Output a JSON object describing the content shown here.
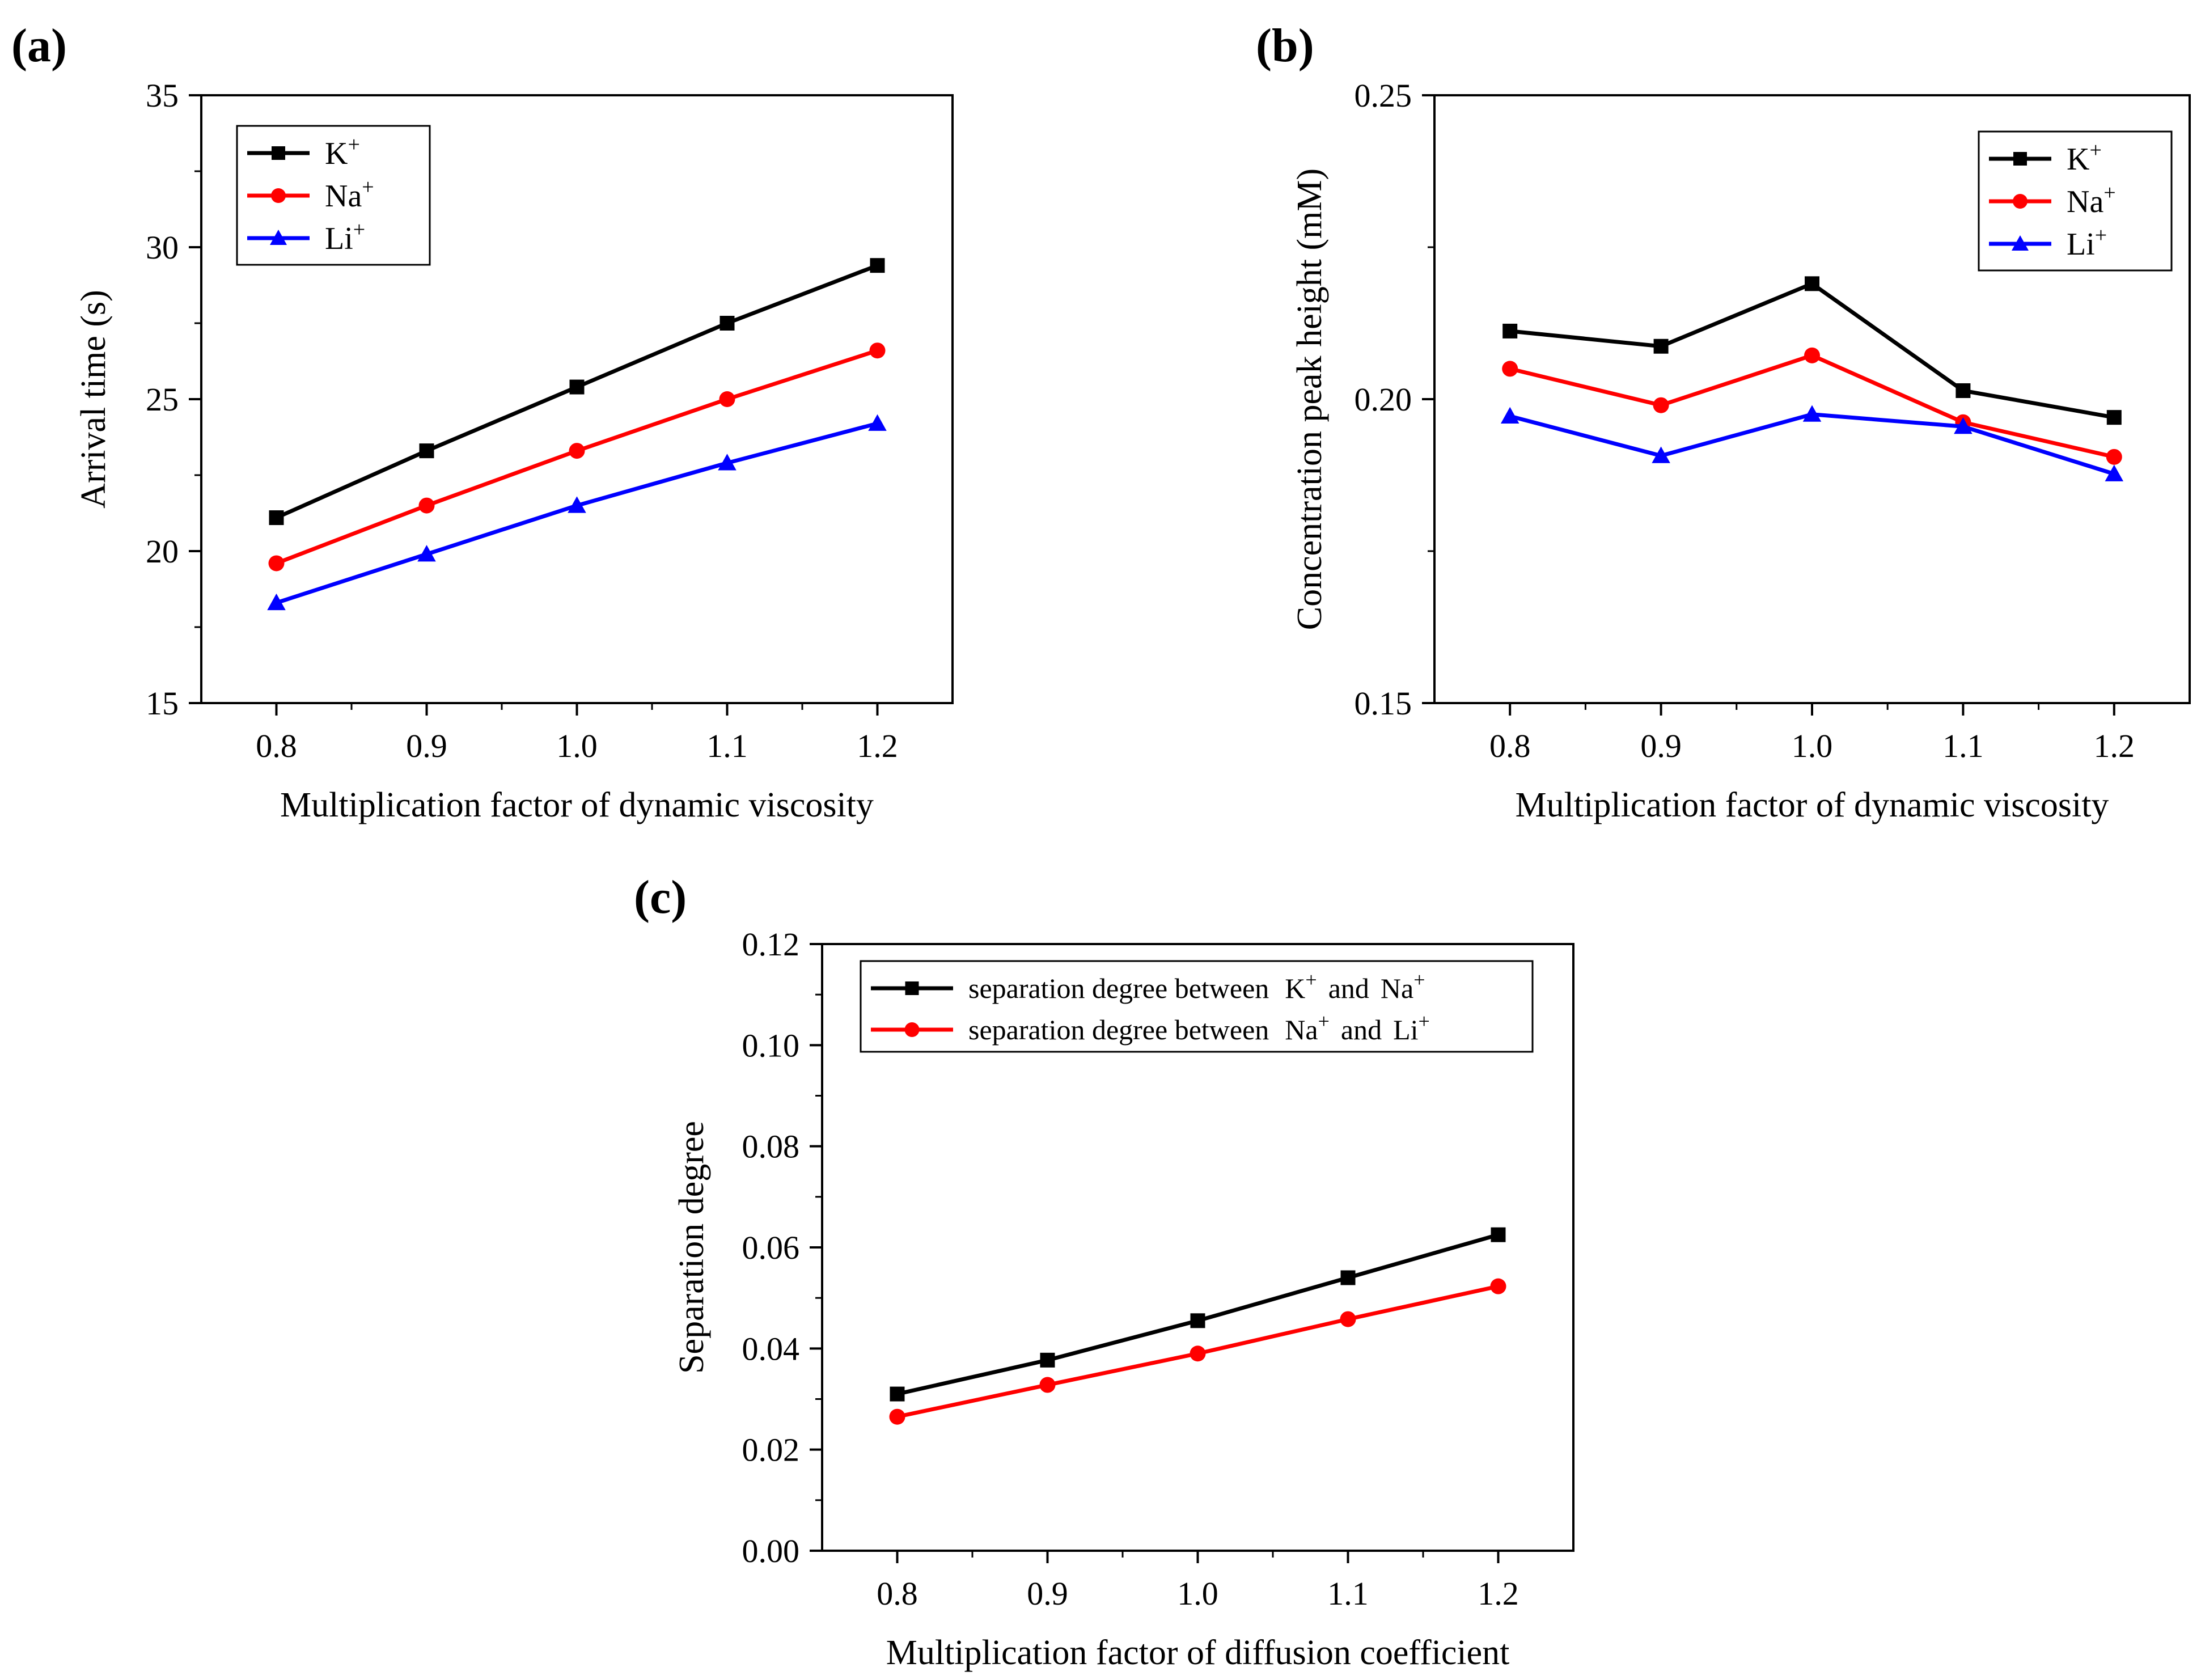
{
  "chart_data": [
    {
      "panel": "(a)",
      "type": "line",
      "xlabel": "Multiplication factor of dynamic viscosity",
      "ylabel": "Arrival time (s)",
      "xlim": [
        0.75,
        1.25
      ],
      "ylim": [
        15,
        35
      ],
      "x_ticks": [
        "0.8",
        "0.9",
        "1.0",
        "1.1",
        "1.2"
      ],
      "y_ticks": [
        "15",
        "20",
        "25",
        "30",
        "35"
      ],
      "legend_placement": "top-left",
      "grid": false,
      "x": [
        0.8,
        0.9,
        1.0,
        1.1,
        1.2
      ],
      "series": [
        {
          "name": "K",
          "superscript": "+",
          "color": "#000000",
          "marker": "square",
          "values": [
            21.1,
            23.3,
            25.4,
            27.5,
            29.4
          ]
        },
        {
          "name": "Na",
          "superscript": "+",
          "color": "#ff0000",
          "marker": "circle",
          "values": [
            19.6,
            21.5,
            23.3,
            25.0,
            26.6
          ]
        },
        {
          "name": "Li",
          "superscript": "+",
          "color": "#0000ff",
          "marker": "triangle",
          "values": [
            18.3,
            19.9,
            21.5,
            22.9,
            24.2
          ]
        }
      ]
    },
    {
      "panel": "(b)",
      "type": "line",
      "xlabel": "Multiplication factor of dynamic viscosity",
      "ylabel": "Concentration peak height (mM)",
      "xlim": [
        0.75,
        1.25
      ],
      "ylim": [
        0.15,
        0.25
      ],
      "x_ticks": [
        "0.8",
        "0.9",
        "1.0",
        "1.1",
        "1.2"
      ],
      "y_ticks": [
        "0.15",
        "0.20",
        "0.25"
      ],
      "y_minor_step": 0.025,
      "legend_placement": "top-right",
      "grid": false,
      "x": [
        0.8,
        0.9,
        1.0,
        1.1,
        1.2
      ],
      "series": [
        {
          "name": "K",
          "superscript": "+",
          "color": "#000000",
          "marker": "square",
          "values": [
            0.2112,
            0.2087,
            0.219,
            0.2014,
            0.197
          ]
        },
        {
          "name": "Na",
          "superscript": "+",
          "color": "#ff0000",
          "marker": "circle",
          "values": [
            0.205,
            0.199,
            0.2072,
            0.1962,
            0.1905
          ]
        },
        {
          "name": "Li",
          "superscript": "+",
          "color": "#0000ff",
          "marker": "triangle",
          "values": [
            0.1972,
            0.1907,
            0.1975,
            0.1955,
            0.1877
          ]
        }
      ]
    },
    {
      "panel": "(c)",
      "type": "line",
      "xlabel": "Multiplication factor of diffusion coefficient",
      "ylabel": "Separation degree",
      "xlim": [
        0.75,
        1.25
      ],
      "ylim": [
        0.0,
        0.12
      ],
      "x_ticks": [
        "0.8",
        "0.9",
        "1.0",
        "1.1",
        "1.2"
      ],
      "y_ticks": [
        "0.00",
        "0.02",
        "0.04",
        "0.06",
        "0.08",
        "0.10",
        "0.12"
      ],
      "legend_placement": "top-left",
      "grid": false,
      "x": [
        0.8,
        0.9,
        1.0,
        1.1,
        1.2
      ],
      "series": [
        {
          "name": "separation degree between",
          "ion1": "K",
          "conj": "and",
          "ion2": "Na",
          "superscript": "+",
          "color": "#000000",
          "marker": "square",
          "values": [
            0.031,
            0.0377,
            0.0455,
            0.054,
            0.0625
          ]
        },
        {
          "name": "separation degree between",
          "ion1": "Na",
          "conj": "and",
          "ion2": "Li",
          "superscript": "+",
          "color": "#ff0000",
          "marker": "circle",
          "values": [
            0.0265,
            0.0328,
            0.039,
            0.0458,
            0.0523
          ]
        }
      ]
    }
  ]
}
